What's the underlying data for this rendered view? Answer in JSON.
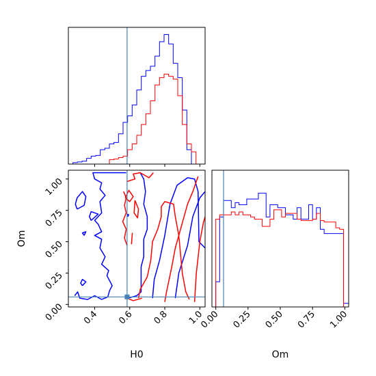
{
  "chart_data": {
    "type": "corner",
    "parameters": [
      "H0",
      "Om"
    ],
    "truth": {
      "H0": 0.585,
      "Om": 0.06
    },
    "colors": {
      "run_a": "#0000ff",
      "run_b": "#ff0000",
      "truth": "#4682b4"
    },
    "panels": [
      {
        "id": "hist_H0",
        "type": "histogram",
        "xlim": [
          0.25,
          1.03
        ],
        "bins": [
          0.25,
          0.276,
          0.302,
          0.328,
          0.354,
          0.38,
          0.406,
          0.432,
          0.458,
          0.484,
          0.51,
          0.536,
          0.562,
          0.588,
          0.614,
          0.64,
          0.666,
          0.692,
          0.718,
          0.744,
          0.77,
          0.796,
          0.822,
          0.848,
          0.874,
          0.9,
          0.926,
          0.952,
          0.978,
          1.004,
          1.03
        ],
        "series": [
          {
            "name": "",
            "color": "#0000ff",
            "values": [
              0,
              2,
              3,
              4,
              8,
              11,
              12,
              20,
              22,
              28,
              30,
              42,
              58,
              67,
              82,
              103,
              122,
              130,
              136,
              150,
              170,
              180,
              167,
              140,
              120,
              75,
              20,
              0,
              0,
              0
            ]
          },
          {
            "name": "",
            "color": "#ff0000",
            "values": [
              0,
              0,
              0,
              0,
              0,
              0,
              0,
              0,
              0,
              6,
              7,
              9,
              11,
              20,
              28,
              40,
              55,
              70,
              88,
              110,
              120,
              125,
              122,
              118,
              95,
              55,
              28,
              17,
              0,
              0
            ]
          }
        ]
      },
      {
        "id": "contour_H0_Om",
        "type": "contour",
        "xlabel": "H0",
        "ylabel": "Om",
        "xlim": [
          0.25,
          1.03
        ],
        "ylim": [
          -0.02,
          1.07
        ],
        "xticks": [
          0.4,
          0.6,
          0.8,
          1.0
        ],
        "xtick_labels": [
          "0.4",
          "0.6",
          "0.8",
          "1.0"
        ],
        "yticks": [
          0.0,
          0.25,
          0.5,
          0.75,
          1.0
        ],
        "ytick_labels": [
          "0.00",
          "0.25",
          "0.50",
          "0.75",
          "1.00"
        ],
        "series": [
          {
            "name": "",
            "color": "#0000ff",
            "contours": [
              [
                [
                  0.286,
                  0.07
                ],
                [
                  0.303,
                  0.1
                ],
                [
                  0.315,
                  0.05
                ],
                [
                  0.36,
                  0.04
                ],
                [
                  0.4,
                  0.07
                ],
                [
                  0.44,
                  0.04
                ],
                [
                  0.475,
                  0.06
                ],
                [
                  0.485,
                  0.11
                ],
                [
                  0.5,
                  0.15
                ],
                [
                  0.47,
                  0.23
                ],
                [
                  0.48,
                  0.27
                ],
                [
                  0.44,
                  0.32
                ],
                [
                  0.46,
                  0.38
                ],
                [
                  0.43,
                  0.45
                ],
                [
                  0.44,
                  0.52
                ],
                [
                  0.4,
                  0.55
                ],
                [
                  0.44,
                  0.58
                ],
                [
                  0.42,
                  0.64
                ],
                [
                  0.4,
                  0.67
                ],
                [
                  0.44,
                  0.73
                ],
                [
                  0.43,
                  0.82
                ],
                [
                  0.46,
                  0.87
                ],
                [
                  0.43,
                  0.92
                ],
                [
                  0.44,
                  0.97
                ],
                [
                  0.4,
                  1.0
                ],
                [
                  0.39,
                  1.05
                ],
                [
                  0.58,
                  1.05
                ]
              ],
              [
                [
                  0.38,
                  0.67
                ],
                [
                  0.42,
                  0.72
                ],
                [
                  0.38,
                  0.74
                ],
                [
                  0.37,
                  0.7
                ],
                [
                  0.38,
                  0.67
                ]
              ],
              [
                [
                  0.3,
                  0.76
                ],
                [
                  0.34,
                  0.79
                ],
                [
                  0.35,
                  0.86
                ],
                [
                  0.33,
                  0.9
                ],
                [
                  0.3,
                  0.85
                ],
                [
                  0.29,
                  0.8
                ],
                [
                  0.3,
                  0.76
                ]
              ],
              [
                [
                  0.34,
                  0.55
                ],
                [
                  0.35,
                  0.58
                ],
                [
                  0.33,
                  0.57
                ],
                [
                  0.34,
                  0.55
                ]
              ],
              [
                [
                  0.33,
                  0.15
                ],
                [
                  0.35,
                  0.18
                ],
                [
                  0.33,
                  0.2
                ],
                [
                  0.32,
                  0.17
                ],
                [
                  0.33,
                  0.15
                ]
              ],
              [
                [
                  0.59,
                  0.05
                ],
                [
                  0.64,
                  0.07
                ],
                [
                  0.665,
                  0.1
                ],
                [
                  0.665,
                  0.3
                ],
                [
                  0.68,
                  0.38
                ],
                [
                  0.68,
                  0.52
                ],
                [
                  0.7,
                  0.6
                ],
                [
                  0.7,
                  0.7
                ],
                [
                  0.68,
                  0.8
                ],
                [
                  0.69,
                  0.9
                ],
                [
                  0.68,
                  1.0
                ],
                [
                  0.66,
                  1.05
                ]
              ],
              [
                [
                  0.73,
                  0.05
                ],
                [
                  0.74,
                  0.2
                ],
                [
                  0.77,
                  0.35
                ],
                [
                  0.8,
                  0.55
                ],
                [
                  0.83,
                  0.8
                ],
                [
                  0.87,
                  0.95
                ],
                [
                  0.93,
                  1.01
                ],
                [
                  0.97,
                  1.0
                ],
                [
                  0.99,
                  0.9
                ],
                [
                  0.995,
                  0.5
                ],
                [
                  1.03,
                  0.45
                ]
              ],
              [
                [
                  0.86,
                  0.05
                ],
                [
                  0.88,
                  0.25
                ],
                [
                  0.93,
                  0.47
                ],
                [
                  0.96,
                  0.7
                ],
                [
                  1.0,
                  0.85
                ],
                [
                  1.03,
                  0.9
                ]
              ],
              [
                [
                  0.589,
                  0.7
                ],
                [
                  0.594,
                  0.715
                ],
                [
                  0.586,
                  0.72
                ],
                [
                  0.589,
                  0.7
                ]
              ]
            ]
          },
          {
            "name": "",
            "color": "#ff0000",
            "contours": [
              [
                [
                  0.585,
                  0.05
                ],
                [
                  0.62,
                  0.03
                ],
                [
                  0.67,
                  0.05
                ]
              ],
              [
                [
                  0.585,
                  0.47
                ],
                [
                  0.57,
                  0.53
                ],
                [
                  0.58,
                  0.6
                ],
                [
                  0.56,
                  0.66
                ],
                [
                  0.58,
                  0.73
                ],
                [
                  0.57,
                  0.79
                ],
                [
                  0.58,
                  0.85
                ],
                [
                  0.565,
                  0.9
                ]
              ],
              [
                [
                  0.585,
                  0.98
                ],
                [
                  0.63,
                  1.0
                ],
                [
                  0.62,
                  1.04
                ],
                [
                  0.66,
                  1.05
                ],
                [
                  0.71,
                  1.01
                ],
                [
                  0.735,
                  1.05
                ]
              ],
              [
                [
                  0.575,
                  0.85
                ],
                [
                  0.6,
                  0.82
                ],
                [
                  0.62,
                  0.86
                ],
                [
                  0.595,
                  0.91
                ],
                [
                  0.575,
                  0.85
                ]
              ],
              [
                [
                  0.63,
                  0.83
                ],
                [
                  0.65,
                  0.76
                ],
                [
                  0.645,
                  0.69
                ],
                [
                  0.625,
                  0.73
                ],
                [
                  0.63,
                  0.83
                ]
              ],
              [
                [
                  0.61,
                  0.48
                ],
                [
                  0.615,
                  0.57
                ]
              ],
              [
                [
                  0.65,
                  0.05
                ],
                [
                  0.66,
                  0.12
                ],
                [
                  0.7,
                  0.22
                ],
                [
                  0.72,
                  0.35
                ],
                [
                  0.73,
                  0.5
                ],
                [
                  0.76,
                  0.6
                ],
                [
                  0.78,
                  0.7
                ],
                [
                  0.78,
                  0.78
                ],
                [
                  0.8,
                  0.82
                ],
                [
                  0.85,
                  0.8
                ],
                [
                  0.86,
                  0.7
                ],
                [
                  0.88,
                  0.55
                ],
                [
                  0.89,
                  0.4
                ],
                [
                  0.9,
                  0.25
                ],
                [
                  0.92,
                  0.1
                ],
                [
                  0.94,
                  0.04
                ]
              ],
              [
                [
                  0.8,
                  0.02
                ],
                [
                  0.81,
                  0.1
                ],
                [
                  0.84,
                  0.3
                ],
                [
                  0.86,
                  0.45
                ],
                [
                  0.88,
                  0.55
                ],
                [
                  0.9,
                  0.65
                ],
                [
                  0.93,
                  0.8
                ],
                [
                  0.96,
                  0.9
                ],
                [
                  0.99,
                  1.02
                ]
              ],
              [
                [
                  0.97,
                  0.02
                ],
                [
                  0.98,
                  0.25
                ],
                [
                  1.0,
                  0.5
                ],
                [
                  1.02,
                  0.65
                ],
                [
                  1.03,
                  0.7
                ]
              ]
            ]
          }
        ]
      },
      {
        "id": "hist_Om",
        "type": "histogram",
        "xlabel": "Om",
        "xlim": [
          -0.03,
          1.03
        ],
        "xticks": [
          0.0,
          0.25,
          0.5,
          0.75,
          1.0
        ],
        "xtick_labels": [
          "0.00",
          "0.25",
          "0.50",
          "0.75",
          "1.00"
        ],
        "bins": [
          -0.03,
          0.0,
          0.03,
          0.06,
          0.09,
          0.12,
          0.15,
          0.18,
          0.21,
          0.24,
          0.27,
          0.3,
          0.33,
          0.36,
          0.39,
          0.42,
          0.45,
          0.48,
          0.51,
          0.54,
          0.57,
          0.6,
          0.63,
          0.66,
          0.69,
          0.72,
          0.75,
          0.78,
          0.81,
          0.84,
          0.87,
          0.9,
          0.93,
          0.96,
          0.99,
          1.03
        ],
        "series": [
          {
            "name": "",
            "color": "#0000ff",
            "values": [
              0,
              35,
              125,
              148,
              148,
              138,
              145,
              142,
              142,
              150,
              150,
              150,
              158,
              158,
              125,
              142,
              142,
              138,
              138,
              128,
              128,
              122,
              138,
              122,
              122,
              142,
              122,
              138,
              108,
              102,
              102,
              102,
              102,
              102,
              5
            ]
          },
          {
            "name": "",
            "color": "#ff0000",
            "values": [
              0,
              122,
              128,
              128,
              128,
              132,
              128,
              132,
              128,
              128,
              125,
              122,
              122,
              112,
              112,
              122,
              135,
              135,
              125,
              130,
              130,
              130,
              122,
              120,
              120,
              120,
              122,
              130,
              120,
              118,
              118,
              118,
              110,
              108,
              0
            ]
          }
        ]
      }
    ]
  }
}
